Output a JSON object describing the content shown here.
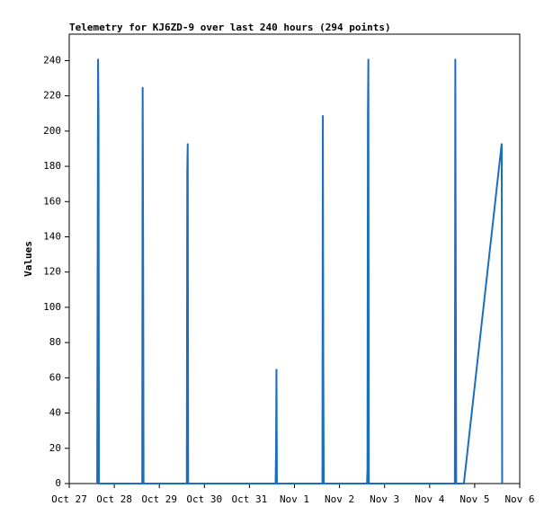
{
  "chart_data": {
    "type": "line",
    "title": "Telemetry for KJ6ZD-9 over last 240 hours (294 points)",
    "y_label": "Values",
    "x": [
      0.62,
      0.64,
      0.65,
      0.66,
      1.62,
      1.63,
      1.64,
      1.65,
      2.61,
      2.62,
      2.63,
      2.64,
      4.58,
      4.59,
      4.6,
      4.61,
      5.62,
      5.63,
      5.64,
      5.65,
      6.61,
      6.62,
      6.63,
      6.64,
      6.65,
      8.56,
      8.57,
      8.58,
      8.59,
      8.76,
      9.6,
      9.61
    ],
    "series": [
      {
        "name": "Values",
        "color": "#1a6ec0",
        "values": [
          0,
          241,
          208,
          0,
          0,
          225,
          137,
          0,
          0,
          177,
          193,
          0,
          0,
          17,
          65,
          0,
          0,
          209,
          65,
          0,
          0,
          8,
          209,
          241,
          0,
          0,
          241,
          113,
          0,
          0,
          193,
          0
        ]
      }
    ],
    "xlim": [
      0,
      10
    ],
    "xticks": [
      {
        "value": 0,
        "label": "Oct 27"
      },
      {
        "value": 1,
        "label": "Oct 28"
      },
      {
        "value": 2,
        "label": "Oct 29"
      },
      {
        "value": 3,
        "label": "Oct 30"
      },
      {
        "value": 4,
        "label": "Oct 31"
      },
      {
        "value": 5,
        "label": "Nov 1"
      },
      {
        "value": 6,
        "label": "Nov 2"
      },
      {
        "value": 7,
        "label": "Nov 3"
      },
      {
        "value": 8,
        "label": "Nov 4"
      },
      {
        "value": 9,
        "label": "Nov 5"
      },
      {
        "value": 10,
        "label": "Nov 6"
      }
    ],
    "ylim": [
      0,
      255
    ],
    "yticks": [
      0,
      20,
      40,
      60,
      80,
      100,
      120,
      140,
      160,
      180,
      200,
      220,
      240
    ]
  }
}
